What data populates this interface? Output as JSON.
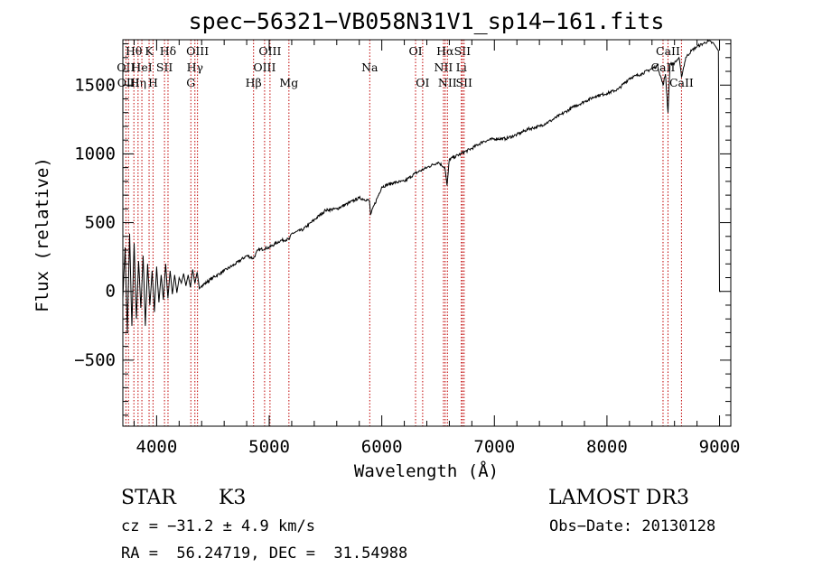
{
  "chart_data": {
    "type": "line",
    "title": "spec−56321−VB058N31V1_sp14−161.fits",
    "xlabel": "Wavelength (Å)",
    "ylabel": "Flux (relative)",
    "xlim": [
      3700,
      9100
    ],
    "ylim": [
      -980,
      1830
    ],
    "x_ticks": [
      {
        "value": 4000,
        "label": "4000"
      },
      {
        "value": 5000,
        "label": "5000"
      },
      {
        "value": 6000,
        "label": "6000"
      },
      {
        "value": 7000,
        "label": "7000"
      },
      {
        "value": 8000,
        "label": "8000"
      },
      {
        "value": 9000,
        "label": "9000"
      }
    ],
    "y_ticks": [
      {
        "value": -500,
        "label": "−500"
      },
      {
        "value": 0,
        "label": "0"
      },
      {
        "value": 500,
        "label": "500"
      },
      {
        "value": 1000,
        "label": "1000"
      },
      {
        "value": 1500,
        "label": "1500"
      }
    ],
    "series": [
      {
        "name": "flux",
        "x": [
          3700,
          3720,
          3740,
          3760,
          3780,
          3800,
          3820,
          3840,
          3860,
          3880,
          3900,
          3920,
          3940,
          3960,
          3980,
          4000,
          4020,
          4040,
          4060,
          4080,
          4100,
          4120,
          4140,
          4160,
          4180,
          4200,
          4220,
          4240,
          4260,
          4280,
          4300,
          4320,
          4340,
          4360,
          4380,
          4400,
          4500,
          4600,
          4700,
          4800,
          4860,
          4900,
          5000,
          5100,
          5180,
          5200,
          5300,
          5400,
          5500,
          5600,
          5700,
          5800,
          5890,
          5900,
          6000,
          6100,
          6200,
          6300,
          6400,
          6500,
          6560,
          6580,
          6600,
          6700,
          6800,
          6900,
          7000,
          7100,
          7200,
          7300,
          7400,
          7500,
          7600,
          7700,
          7800,
          7900,
          8000,
          8100,
          8200,
          8300,
          8400,
          8450,
          8498,
          8520,
          8542,
          8560,
          8600,
          8640,
          8662,
          8700,
          8750,
          8800,
          8850,
          8900,
          8950,
          8990,
          9000,
          9010
        ],
        "y": [
          -50,
          320,
          -300,
          420,
          -250,
          350,
          -200,
          220,
          -120,
          260,
          -250,
          200,
          -100,
          150,
          -150,
          180,
          -80,
          120,
          -60,
          200,
          -50,
          150,
          -20,
          120,
          -10,
          100,
          60,
          130,
          40,
          120,
          30,
          160,
          60,
          140,
          20,
          40,
          100,
          150,
          200,
          260,
          240,
          300,
          320,
          370,
          380,
          420,
          450,
          520,
          590,
          600,
          640,
          680,
          660,
          560,
          760,
          790,
          800,
          860,
          900,
          940,
          900,
          770,
          960,
          1000,
          1040,
          1090,
          1110,
          1110,
          1140,
          1180,
          1200,
          1240,
          1290,
          1340,
          1380,
          1420,
          1440,
          1470,
          1550,
          1580,
          1620,
          1640,
          1500,
          1580,
          1300,
          1650,
          1660,
          1700,
          1560,
          1700,
          1750,
          1780,
          1800,
          1820,
          1800,
          1750,
          0,
          0
        ]
      }
    ],
    "line_markers": [
      {
        "wavelength": 3727,
        "label": "OII",
        "row": 1
      },
      {
        "wavelength": 3750,
        "label": "OIII",
        "row": 2
      },
      {
        "wavelength": 3798,
        "label": "Hθ",
        "row": 0
      },
      {
        "wavelength": 3835,
        "label": "Hη",
        "row": 2
      },
      {
        "wavelength": 3869,
        "label": "HeI",
        "row": 1
      },
      {
        "wavelength": 3933,
        "label": "K",
        "row": 0
      },
      {
        "wavelength": 3968,
        "label": "H",
        "row": 2
      },
      {
        "wavelength": 4070,
        "label": "SII",
        "row": 1
      },
      {
        "wavelength": 4101,
        "label": "Hδ",
        "row": 0
      },
      {
        "wavelength": 4304,
        "label": "G",
        "row": 2
      },
      {
        "wavelength": 4340,
        "label": "Hγ",
        "row": 1
      },
      {
        "wavelength": 4363,
        "label": "OIII",
        "row": 0
      },
      {
        "wavelength": 4861,
        "label": "Hβ",
        "row": 2
      },
      {
        "wavelength": 4959,
        "label": "OIII",
        "row": 1
      },
      {
        "wavelength": 5007,
        "label": "OIII",
        "row": 0
      },
      {
        "wavelength": 5175,
        "label": "Mg",
        "row": 2
      },
      {
        "wavelength": 5893,
        "label": "Na",
        "row": 1
      },
      {
        "wavelength": 6300,
        "label": "OI",
        "row": 0
      },
      {
        "wavelength": 6363,
        "label": "OI",
        "row": 2
      },
      {
        "wavelength": 6548,
        "label": "NII",
        "row": 1
      },
      {
        "wavelength": 6563,
        "label": "Hα",
        "row": 0
      },
      {
        "wavelength": 6583,
        "label": "NII",
        "row": 2
      },
      {
        "wavelength": 6707,
        "label": "Li",
        "row": 1
      },
      {
        "wavelength": 6716,
        "label": "SII",
        "row": 0
      },
      {
        "wavelength": 6731,
        "label": "SII",
        "row": 2
      },
      {
        "wavelength": 8498,
        "label": "CaII",
        "row": 1
      },
      {
        "wavelength": 8542,
        "label": "CaII",
        "row": 0
      },
      {
        "wavelength": 8662,
        "label": "CaII",
        "row": 2
      }
    ]
  },
  "info": {
    "object_class": "STAR",
    "subclass": "K3",
    "survey": "LAMOST DR3",
    "velocity": "cz = −31.2 ± 4.9 km/s",
    "obs_date": "Obs−Date: 20130128",
    "coords": "RA =  56.24719, DEC =  31.54988"
  },
  "colors": {
    "spectrum": "#000000",
    "line_marker": "#c00000",
    "axes": "#000000"
  }
}
